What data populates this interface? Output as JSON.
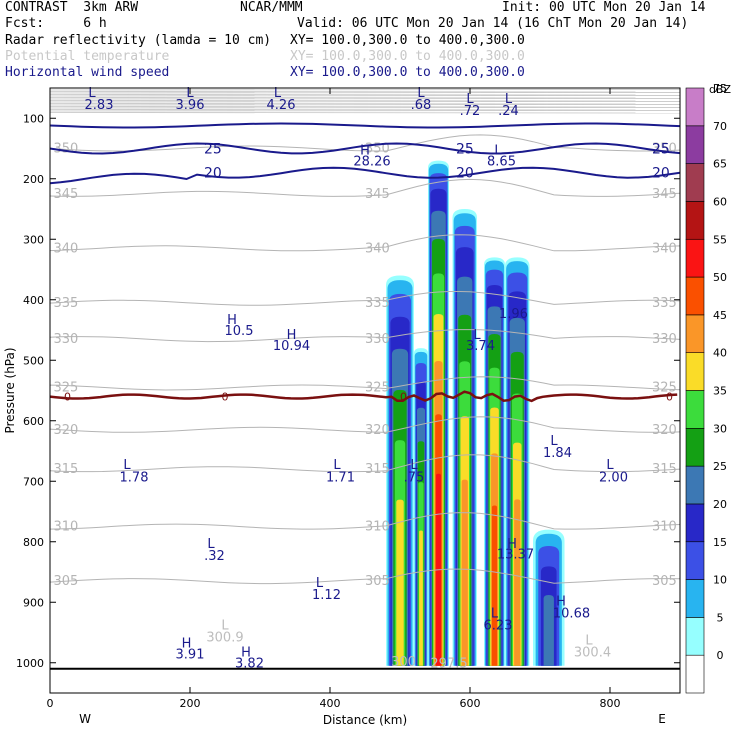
{
  "header": {
    "model": "CONTRAST  3km ARW",
    "center": "NCAR/MMM",
    "init": "Init: 00 UTC Mon 20 Jan 14",
    "fcst": "Fcst:     6 h",
    "valid": "Valid: 06 UTC Mon 20 Jan 14 (16 ChT Mon 20 Jan 14)",
    "fields": [
      {
        "name": "Radar reflectivity (lamda = 10 cm)",
        "xy": "XY= 100.0,300.0 to 400.0,300.0"
      },
      {
        "name": "Potential temperature",
        "xy": "XY= 100.0,300.0 to 400.0,300.0"
      },
      {
        "name": "Horizontal wind speed",
        "xy": "XY= 100.0,300.0 to 400.0,300.0"
      }
    ]
  },
  "chart_data": {
    "type": "heatmap",
    "title": "",
    "xlabel": "Distance (km)",
    "ylabel": "Pressure (hPa)",
    "xlim": [
      0,
      900
    ],
    "ylim": [
      1050,
      50
    ],
    "x_ticks": [
      0,
      200,
      400,
      600,
      800
    ],
    "y_ticks": [
      100,
      200,
      300,
      400,
      500,
      600,
      700,
      800,
      900,
      1000
    ],
    "x_end_labels": {
      "left": "W",
      "right": "E"
    },
    "colorbar": {
      "unit": "dBZ",
      "levels": [
        0,
        5,
        10,
        15,
        20,
        25,
        30,
        35,
        40,
        45,
        50,
        55,
        60,
        65,
        70,
        75
      ],
      "colors": [
        "#ffffff",
        "#96ffff",
        "#28b4f0",
        "#3c50e6",
        "#2828c8",
        "#3c78b4",
        "#14a014",
        "#3cdc3c",
        "#fadc28",
        "#fa9628",
        "#fa5000",
        "#fa1414",
        "#b41414",
        "#a03c50",
        "#8c3ca0",
        "#c87dc8"
      ]
    },
    "reflectivity_cells": [
      {
        "x": [
          480,
          520
        ],
        "p_top": 360,
        "max_dbz": 40
      },
      {
        "x": [
          520,
          540
        ],
        "p_top": 480,
        "max_dbz": 40
      },
      {
        "x": [
          540,
          570
        ],
        "p_top": 170,
        "max_dbz": 55
      },
      {
        "x": [
          575,
          610
        ],
        "p_top": 250,
        "max_dbz": 45
      },
      {
        "x": [
          620,
          650
        ],
        "p_top": 330,
        "max_dbz": 50
      },
      {
        "x": [
          650,
          685
        ],
        "p_top": 330,
        "max_dbz": 45
      },
      {
        "x": [
          690,
          735
        ],
        "p_top": 780,
        "max_dbz": 25
      }
    ],
    "contours": {
      "potential_temperature": [
        {
          "value": "350",
          "p": 150
        },
        {
          "value": "345",
          "p": 225
        },
        {
          "value": "340",
          "p": 315
        },
        {
          "value": "335",
          "p": 405
        },
        {
          "value": "330",
          "p": 465
        },
        {
          "value": "325",
          "p": 545
        },
        {
          "value": "320",
          "p": 615
        },
        {
          "value": "315",
          "p": 680
        },
        {
          "value": "310",
          "p": 775
        },
        {
          "value": "305",
          "p": 865
        }
      ],
      "wind_speed": [
        {
          "value": "25",
          "p": 150
        },
        {
          "value": "20",
          "p": 190
        }
      ],
      "freezing_level": {
        "value": "0",
        "p": 560
      }
    },
    "annotations": [
      {
        "text": "L",
        "x": 60,
        "p": 65,
        "color": "blue"
      },
      {
        "text": "2.83",
        "x": 70,
        "p": 85,
        "color": "blue"
      },
      {
        "text": "L",
        "x": 200,
        "p": 65,
        "color": "blue"
      },
      {
        "text": "3.96",
        "x": 200,
        "p": 85,
        "color": "blue"
      },
      {
        "text": "L",
        "x": 325,
        "p": 65,
        "color": "blue"
      },
      {
        "text": "4.26",
        "x": 330,
        "p": 85,
        "color": "blue"
      },
      {
        "text": "L",
        "x": 530,
        "p": 65,
        "color": "blue"
      },
      {
        "text": ".68",
        "x": 530,
        "p": 85,
        "color": "blue"
      },
      {
        "text": "L",
        "x": 600,
        "p": 75,
        "color": "blue"
      },
      {
        "text": ".72",
        "x": 600,
        "p": 95,
        "color": "blue"
      },
      {
        "text": "L",
        "x": 655,
        "p": 75,
        "color": "blue"
      },
      {
        "text": ".24",
        "x": 655,
        "p": 95,
        "color": "blue"
      },
      {
        "text": "H",
        "x": 450,
        "p": 160,
        "color": "blue"
      },
      {
        "text": "28.26",
        "x": 460,
        "p": 178,
        "color": "blue"
      },
      {
        "text": "L",
        "x": 640,
        "p": 160,
        "color": "blue"
      },
      {
        "text": "8.65",
        "x": 645,
        "p": 178,
        "color": "blue"
      },
      {
        "text": "H",
        "x": 260,
        "p": 440,
        "color": "blue"
      },
      {
        "text": "10.5",
        "x": 270,
        "p": 458,
        "color": "blue"
      },
      {
        "text": "H",
        "x": 345,
        "p": 465,
        "color": "blue"
      },
      {
        "text": "10.94",
        "x": 345,
        "p": 483,
        "color": "blue"
      },
      {
        "text": "L",
        "x": 610,
        "p": 465,
        "color": "blue"
      },
      {
        "text": "3.74",
        "x": 615,
        "p": 483,
        "color": "blue"
      },
      {
        "text": "1.96",
        "x": 662,
        "p": 430,
        "color": "blue"
      },
      {
        "text": "L",
        "x": 720,
        "p": 640,
        "color": "blue"
      },
      {
        "text": "1.84",
        "x": 725,
        "p": 660,
        "color": "blue"
      },
      {
        "text": "L",
        "x": 110,
        "p": 680,
        "color": "blue"
      },
      {
        "text": "1.78",
        "x": 120,
        "p": 700,
        "color": "blue"
      },
      {
        "text": "L",
        "x": 410,
        "p": 680,
        "color": "blue"
      },
      {
        "text": "1.71",
        "x": 415,
        "p": 700,
        "color": "blue"
      },
      {
        "text": "L",
        "x": 520,
        "p": 680,
        "color": "blue"
      },
      {
        "text": ".75",
        "x": 520,
        "p": 700,
        "color": "blue"
      },
      {
        "text": "L",
        "x": 800,
        "p": 680,
        "color": "blue"
      },
      {
        "text": "2.00",
        "x": 805,
        "p": 700,
        "color": "blue"
      },
      {
        "text": "L",
        "x": 230,
        "p": 810,
        "color": "blue"
      },
      {
        "text": ".32",
        "x": 235,
        "p": 830,
        "color": "blue"
      },
      {
        "text": "H",
        "x": 660,
        "p": 810,
        "color": "blue"
      },
      {
        "text": "13.37",
        "x": 665,
        "p": 828,
        "color": "blue"
      },
      {
        "text": "L",
        "x": 385,
        "p": 875,
        "color": "blue"
      },
      {
        "text": "1.12",
        "x": 395,
        "p": 895,
        "color": "blue"
      },
      {
        "text": "H",
        "x": 730,
        "p": 905,
        "color": "blue"
      },
      {
        "text": "10.68",
        "x": 745,
        "p": 925,
        "color": "blue"
      },
      {
        "text": "L",
        "x": 635,
        "p": 925,
        "color": "blue"
      },
      {
        "text": "6.23",
        "x": 640,
        "p": 945,
        "color": "blue"
      },
      {
        "text": "L",
        "x": 250,
        "p": 945,
        "color": "grey"
      },
      {
        "text": "300.9",
        "x": 250,
        "p": 965,
        "color": "grey"
      },
      {
        "text": "H",
        "x": 195,
        "p": 975,
        "color": "blue"
      },
      {
        "text": "3.91",
        "x": 200,
        "p": 993,
        "color": "blue"
      },
      {
        "text": "H",
        "x": 280,
        "p": 990,
        "color": "blue"
      },
      {
        "text": "3.82",
        "x": 285,
        "p": 1008,
        "color": "blue"
      },
      {
        "text": "L",
        "x": 770,
        "p": 970,
        "color": "grey"
      },
      {
        "text": "300.4",
        "x": 775,
        "p": 990,
        "color": "grey"
      },
      {
        "text": "300",
        "x": 505,
        "p": 1005,
        "color": "grey"
      },
      {
        "text": "297.5",
        "x": 570,
        "p": 1008,
        "color": "grey"
      }
    ]
  }
}
